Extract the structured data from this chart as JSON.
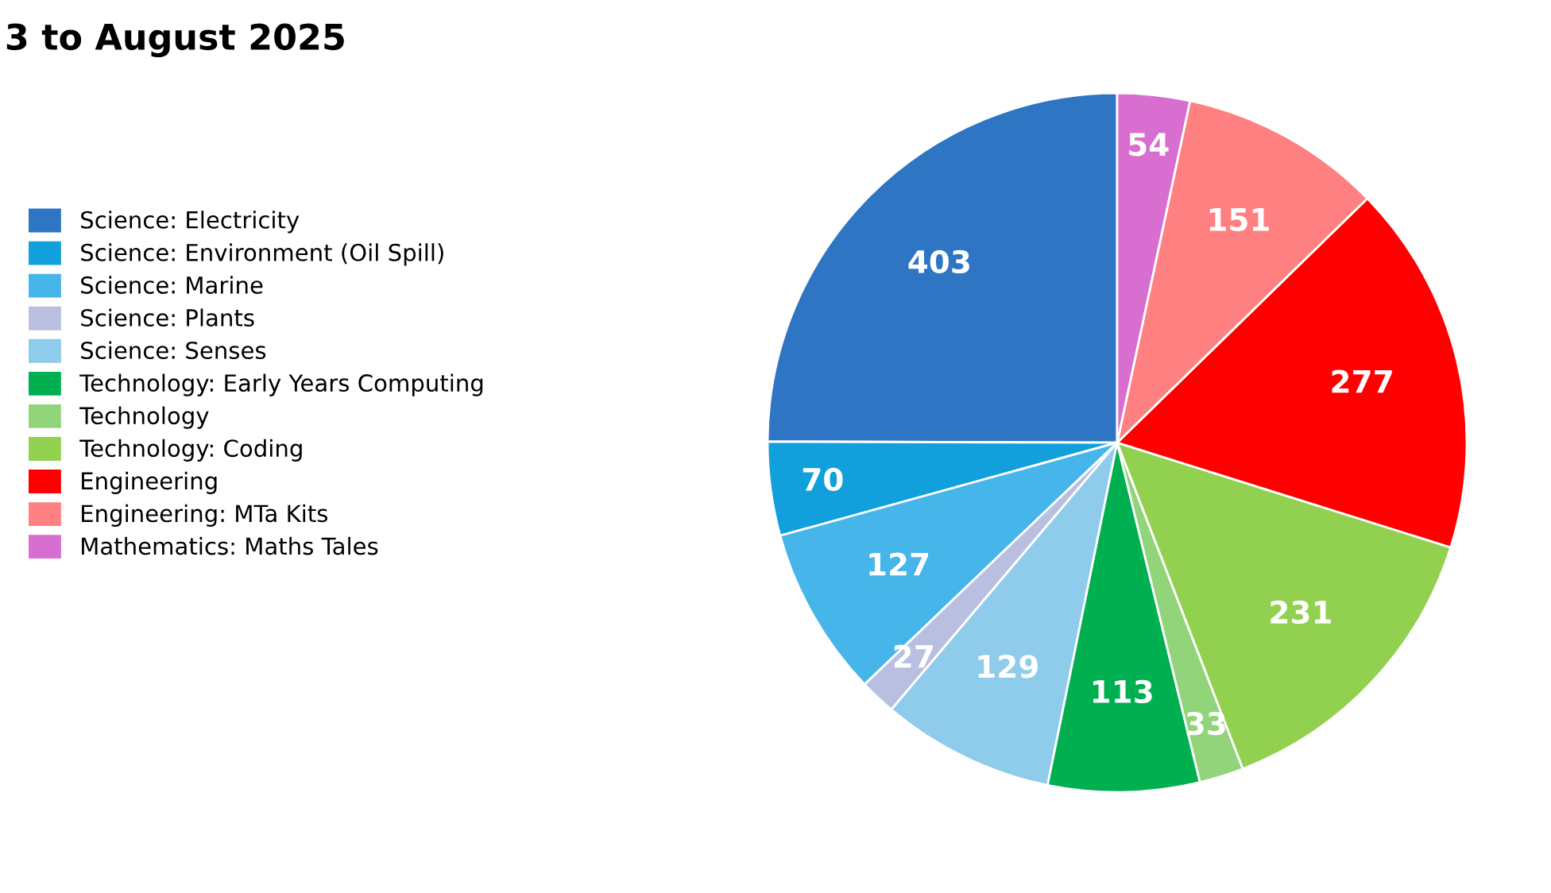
{
  "chart_data": {
    "type": "pie",
    "title": "3 to August 2025",
    "categories": [
      "Science: Electricity",
      "Science: Environment (Oil Spill)",
      "Science: Marine",
      "Science: Plants",
      "Science: Senses",
      "Technology: Early Years Computing",
      "Technology",
      "Technology: Coding",
      "Engineering",
      "Engineering: MTa Kits",
      "Mathematics: Maths Tales"
    ],
    "values": [
      403,
      70,
      127,
      27,
      129,
      113,
      33,
      231,
      277,
      151,
      54
    ],
    "colors": [
      "#2e75c4",
      "#12a0dd",
      "#45b5ea",
      "#b9bfe0",
      "#8fcbea",
      "#00b050",
      "#92d47a",
      "#92d050",
      "#ff0000",
      "#ff8080",
      "#d86ed0"
    ],
    "data_labels": true,
    "legend": "left"
  }
}
